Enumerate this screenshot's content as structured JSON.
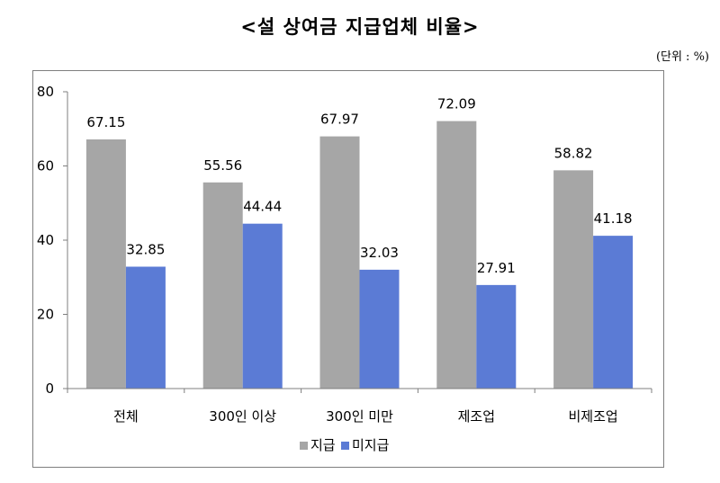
{
  "header": {
    "title": "<설 상여금 지급업체 비율>",
    "unit": "(단위 : %)"
  },
  "chart_data": {
    "type": "bar",
    "title": "<설 상여금 지급업체 비율>",
    "unit": "(단위 : %)",
    "categories": [
      "전체",
      "300인 이상",
      "300인 미만",
      "제조업",
      "비제조업"
    ],
    "series": [
      {
        "name": "지급",
        "values": [
          67.15,
          55.56,
          67.97,
          72.09,
          58.82
        ],
        "color": "#a6a6a6"
      },
      {
        "name": "미지급",
        "values": [
          32.85,
          44.44,
          32.03,
          27.91,
          41.18
        ],
        "color": "#5b7bd5"
      }
    ],
    "ylim": [
      0,
      80
    ],
    "yticks": [
      0,
      20,
      40,
      60,
      80
    ],
    "grid": false,
    "legend": "bottom",
    "xlabel": "",
    "ylabel": ""
  }
}
